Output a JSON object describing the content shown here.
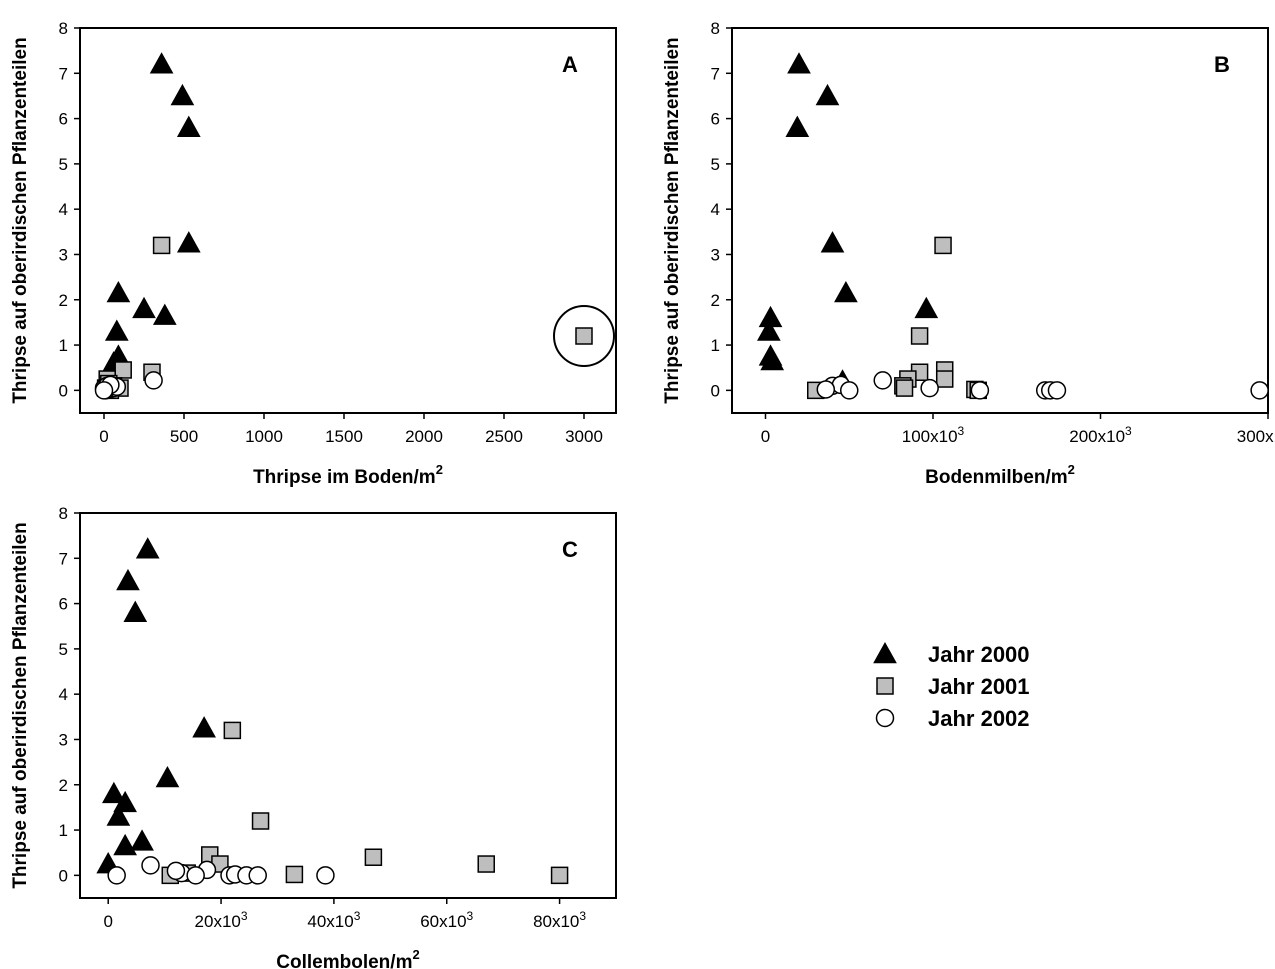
{
  "ylabel_all": "Thripse auf oberirdischen Pflanzenteilen",
  "legend": [
    {
      "marker": "triangle",
      "label": "Jahr 2000",
      "fill": "#000000"
    },
    {
      "marker": "square",
      "label": "Jahr 2001",
      "fill": "#bebebe"
    },
    {
      "marker": "circle",
      "label": "Jahr 2002",
      "fill": "#ffffff"
    }
  ],
  "chart_data": [
    {
      "panel": "A",
      "type": "scatter",
      "xlabel": "Thripse im Boden/m",
      "xlabel_sup": "2",
      "ylabel": "Thripse auf oberirdischen Pflanzenteilen",
      "xlim": [
        -150,
        3200
      ],
      "ylim": [
        -0.5,
        8
      ],
      "xticks": [
        0,
        500,
        1000,
        1500,
        2000,
        2500,
        3000
      ],
      "xtick_labels": [
        "0",
        "500",
        "1000",
        "1500",
        "2000",
        "2500",
        "3000"
      ],
      "yticks": [
        0,
        1,
        2,
        3,
        4,
        5,
        6,
        7,
        8
      ],
      "grid": false,
      "annotations": [
        {
          "type": "circle",
          "around": [
            3000,
            1.2
          ]
        }
      ],
      "series": [
        {
          "name": "Jahr 2000",
          "marker": "triangle",
          "x": [
            360,
            490,
            530,
            530,
            90,
            250,
            380,
            80,
            90,
            60,
            80
          ],
          "y": [
            7.2,
            6.5,
            5.8,
            3.25,
            2.15,
            1.8,
            1.65,
            1.3,
            0.75,
            0.6,
            0.1
          ]
        },
        {
          "name": "Jahr 2001",
          "marker": "square",
          "x": [
            360,
            3000,
            120,
            300,
            20,
            30,
            10,
            60,
            100,
            40
          ],
          "y": [
            3.2,
            1.2,
            0.45,
            0.4,
            0.25,
            0.15,
            0.05,
            0.1,
            0.05,
            0.0
          ]
        },
        {
          "name": "Jahr 2002",
          "marker": "circle",
          "x": [
            310,
            0,
            20,
            30,
            60,
            10,
            80,
            40,
            0
          ],
          "y": [
            0.22,
            0.05,
            0.1,
            0.02,
            0.05,
            0.0,
            0.08,
            0.12,
            0.0
          ]
        }
      ]
    },
    {
      "panel": "B",
      "type": "scatter",
      "xlabel": "Bodenmilben/m",
      "xlabel_sup": "2",
      "ylabel": "Thripse auf oberirdischen Pflanzenteilen",
      "xlim": [
        -20000,
        300000
      ],
      "ylim": [
        -0.5,
        8
      ],
      "xticks": [
        0,
        100000,
        200000,
        300000
      ],
      "xtick_labels": [
        "0",
        "100x10",
        "200x10",
        "300x10"
      ],
      "xtick_sup": [
        "",
        "3",
        "3",
        "3"
      ],
      "yticks": [
        0,
        1,
        2,
        3,
        4,
        5,
        6,
        7,
        8
      ],
      "grid": false,
      "series": [
        {
          "name": "Jahr 2000",
          "marker": "triangle",
          "x": [
            20000,
            37000,
            19000,
            40000,
            48000,
            96000,
            3000,
            2000,
            3000,
            4000,
            46000
          ],
          "y": [
            7.2,
            6.5,
            5.8,
            3.25,
            2.15,
            1.8,
            1.6,
            1.3,
            0.75,
            0.65,
            0.2
          ]
        },
        {
          "name": "Jahr 2001",
          "marker": "square",
          "x": [
            106000,
            92000,
            107000,
            92000,
            85000,
            82000,
            107000,
            30000,
            83000,
            125000,
            127000
          ],
          "y": [
            3.2,
            1.2,
            0.45,
            0.4,
            0.25,
            0.1,
            0.25,
            0.0,
            0.05,
            0.02,
            0.0
          ]
        },
        {
          "name": "Jahr 2002",
          "marker": "circle",
          "x": [
            70000,
            40000,
            45000,
            36000,
            50000,
            98000,
            128000,
            167000,
            170000,
            174000,
            295000
          ],
          "y": [
            0.22,
            0.1,
            0.12,
            0.02,
            0.0,
            0.05,
            0.0,
            0.0,
            0.0,
            0.0,
            0.0
          ]
        }
      ]
    },
    {
      "panel": "C",
      "type": "scatter",
      "xlabel": "Collembolen/m",
      "xlabel_sup": "2",
      "ylabel": "Thripse auf oberirdischen Pflanzenteilen",
      "xlim": [
        -5000,
        90000
      ],
      "ylim": [
        -0.5,
        8
      ],
      "xticks": [
        0,
        20000,
        40000,
        60000,
        80000
      ],
      "xtick_labels": [
        "0",
        "20x10",
        "40x10",
        "60x10",
        "80x10"
      ],
      "xtick_sup": [
        "",
        "3",
        "3",
        "3",
        "3"
      ],
      "yticks": [
        0,
        1,
        2,
        3,
        4,
        5,
        6,
        7,
        8
      ],
      "grid": false,
      "series": [
        {
          "name": "Jahr 2000",
          "marker": "triangle",
          "x": [
            7000,
            3500,
            4800,
            17000,
            10500,
            1000,
            3000,
            1800,
            6000,
            3000,
            0
          ],
          "y": [
            7.2,
            6.5,
            5.8,
            3.25,
            2.15,
            1.8,
            1.6,
            1.3,
            0.75,
            0.65,
            0.25
          ]
        },
        {
          "name": "Jahr 2001",
          "marker": "square",
          "x": [
            22000,
            27000,
            18000,
            47000,
            19800,
            67000,
            11000,
            14000,
            33000,
            80000
          ],
          "y": [
            3.2,
            1.2,
            0.45,
            0.4,
            0.25,
            0.25,
            0.0,
            0.05,
            0.02,
            0.0
          ]
        },
        {
          "name": "Jahr 2002",
          "marker": "circle",
          "x": [
            1500,
            7500,
            13000,
            17500,
            12000,
            15500,
            21500,
            22500,
            24500,
            26500,
            38500
          ],
          "y": [
            0.0,
            0.22,
            0.05,
            0.12,
            0.1,
            0.0,
            0.0,
            0.02,
            0.0,
            0.0,
            0.0
          ]
        }
      ]
    }
  ]
}
